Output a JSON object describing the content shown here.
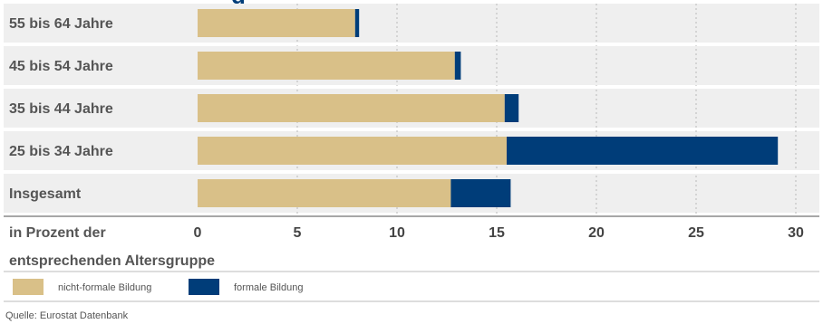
{
  "colors": {
    "nonformal": "#d9c088",
    "formal": "#003d79",
    "grid": "#b8b8b8",
    "row_bg": "#efefef",
    "title": "#003d79"
  },
  "chart_data": {
    "type": "bar",
    "orientation": "horizontal",
    "stacked": true,
    "title_fragment": "...g...",
    "categories": [
      "55 bis 64 Jahre",
      "45 bis 54 Jahre",
      "35 bis 44 Jahre",
      "25 bis 34 Jahre",
      "Insgesamt"
    ],
    "series": [
      {
        "name": "nicht-formale Bildung",
        "values": [
          7.9,
          12.9,
          15.4,
          15.5,
          12.7
        ]
      },
      {
        "name": "formale Bildung",
        "values": [
          0.2,
          0.3,
          0.7,
          13.6,
          3.0
        ]
      }
    ],
    "xlim": [
      0,
      30
    ],
    "xticks": [
      "0",
      "5",
      "10",
      "15",
      "20",
      "25",
      "30"
    ],
    "xlabel_line1": "in Prozent der",
    "xlabel_line2": "entsprechenden Altersgruppe",
    "grid": true,
    "legend_position": "bottom-left"
  },
  "source": "Quelle: Eurostat Datenbank"
}
